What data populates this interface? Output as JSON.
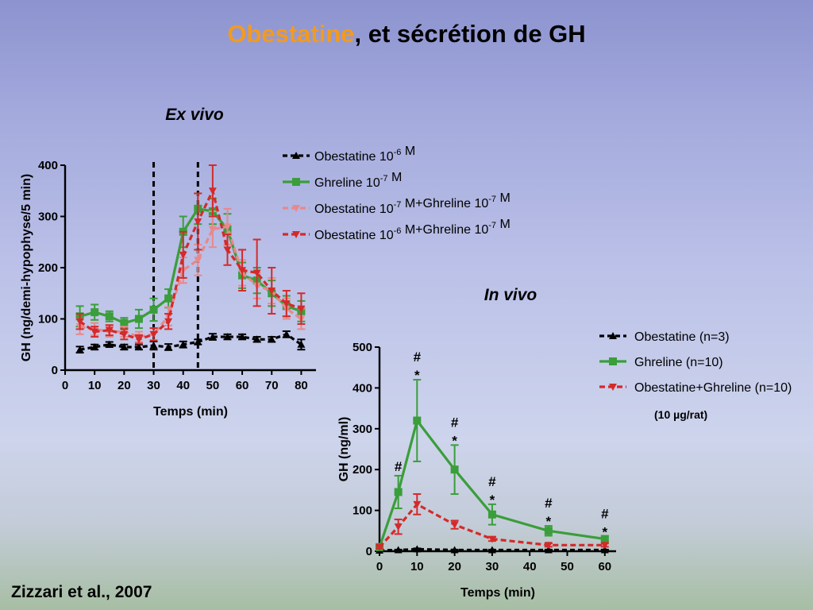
{
  "slide": {
    "title_highlight": "Obestatine",
    "title_rest": ", et sécrétion de GH",
    "citation": "Zizzari et al., 2007"
  },
  "colors": {
    "black": "#000000",
    "green": "#3a9e3a",
    "pink": "#e8888a",
    "red": "#d42a2a",
    "title_accent": "#f39a1e"
  },
  "chart_data": [
    {
      "id": "exvivo",
      "type": "line",
      "title": "Ex vivo",
      "xlabel": "Temps (min)",
      "ylabel": "GH (ng/demi-hypophyse/5 min)",
      "xlim": [
        0,
        85
      ],
      "ylim": [
        0,
        400
      ],
      "xticks": [
        0,
        10,
        20,
        30,
        40,
        50,
        60,
        70,
        80
      ],
      "yticks": [
        0,
        100,
        200,
        300,
        400
      ],
      "vlines": [
        30,
        45
      ],
      "x": [
        5,
        10,
        15,
        20,
        25,
        30,
        35,
        40,
        45,
        50,
        55,
        60,
        65,
        70,
        75,
        80
      ],
      "series": [
        {
          "name": "Obestatine 10",
          "sup": "-6",
          "suffix": " M",
          "color": "#000000",
          "marker": "triangle-up",
          "dash": "6,4",
          "values": [
            40,
            45,
            50,
            45,
            45,
            48,
            45,
            50,
            55,
            65,
            65,
            65,
            60,
            60,
            70,
            50
          ],
          "errors": [
            6,
            5,
            5,
            5,
            5,
            8,
            6,
            6,
            5,
            6,
            5,
            5,
            5,
            5,
            6,
            10
          ]
        },
        {
          "name": "Ghreline 10",
          "sup": "-7",
          "suffix": " M",
          "color": "#3a9e3a",
          "marker": "square",
          "dash": "",
          "values": [
            105,
            113,
            105,
            92,
            100,
            118,
            140,
            270,
            315,
            310,
            275,
            185,
            175,
            150,
            125,
            115
          ],
          "errors": [
            20,
            15,
            10,
            10,
            18,
            22,
            18,
            30,
            30,
            25,
            30,
            25,
            25,
            25,
            20,
            20
          ]
        },
        {
          "name": "Obestatine 10",
          "sup": "-7",
          "suffix": " M+Ghreline 10",
          "sup2": "-7",
          "suffix2": " M",
          "color": "#e8888a",
          "marker": "triangle-down",
          "dash": "7,4",
          "values": [
            85,
            80,
            75,
            75,
            65,
            70,
            105,
            195,
            215,
            275,
            280,
            190,
            165,
            155,
            120,
            100
          ],
          "errors": [
            15,
            12,
            10,
            10,
            10,
            12,
            18,
            25,
            30,
            35,
            35,
            25,
            25,
            25,
            20,
            20
          ]
        },
        {
          "name": "Obestatine 10",
          "sup": "-6",
          "suffix": " M+Ghreline 10",
          "sup2": "-7",
          "suffix2": " M",
          "color": "#d42a2a",
          "marker": "triangle-down",
          "dash": "7,4",
          "values": [
            95,
            75,
            78,
            70,
            60,
            70,
            95,
            225,
            290,
            350,
            235,
            195,
            190,
            155,
            130,
            120
          ],
          "errors": [
            15,
            10,
            10,
            10,
            8,
            12,
            15,
            45,
            55,
            50,
            30,
            40,
            65,
            45,
            25,
            30
          ]
        }
      ]
    },
    {
      "id": "invivo",
      "type": "line",
      "title": "In vivo",
      "xlabel": "Temps (min)",
      "ylabel": "GH (ng/ml)",
      "xlim": [
        0,
        63
      ],
      "ylim": [
        0,
        500
      ],
      "xticks": [
        0,
        10,
        20,
        30,
        40,
        50,
        60
      ],
      "yticks": [
        0,
        100,
        200,
        300,
        400,
        500
      ],
      "note": "(10 µg/rat)",
      "series": [
        {
          "name": "Obestatine (n=3)",
          "color": "#000000",
          "marker": "triangle-up",
          "dash": "6,4",
          "x": [
            0,
            5,
            10,
            20,
            30,
            45,
            60
          ],
          "values": [
            2,
            3,
            5,
            3,
            3,
            3,
            3
          ],
          "errors": [
            1,
            1,
            2,
            1,
            1,
            1,
            1
          ]
        },
        {
          "name": "Ghreline (n=10)",
          "color": "#3a9e3a",
          "marker": "square",
          "dash": "",
          "x": [
            0,
            5,
            10,
            20,
            30,
            45,
            60
          ],
          "values": [
            10,
            145,
            320,
            200,
            90,
            50,
            30
          ],
          "errors": [
            3,
            40,
            100,
            60,
            25,
            12,
            6
          ]
        },
        {
          "name": "Obestatine+Ghreline (n=10)",
          "color": "#d42a2a",
          "marker": "triangle-down",
          "dash": "7,4",
          "x": [
            0,
            5,
            10,
            20,
            30,
            45,
            60
          ],
          "values": [
            10,
            60,
            115,
            65,
            30,
            15,
            15
          ],
          "errors": [
            3,
            18,
            25,
            10,
            5,
            4,
            4
          ]
        }
      ],
      "annotations": [
        {
          "x": 5,
          "labels": [
            "#"
          ]
        },
        {
          "x": 10,
          "labels": [
            "#",
            "*"
          ]
        },
        {
          "x": 20,
          "labels": [
            "#",
            "*"
          ]
        },
        {
          "x": 30,
          "labels": [
            "#",
            "*"
          ]
        },
        {
          "x": 45,
          "labels": [
            "#",
            "*"
          ]
        },
        {
          "x": 60,
          "labels": [
            "#",
            "*"
          ]
        }
      ]
    }
  ]
}
